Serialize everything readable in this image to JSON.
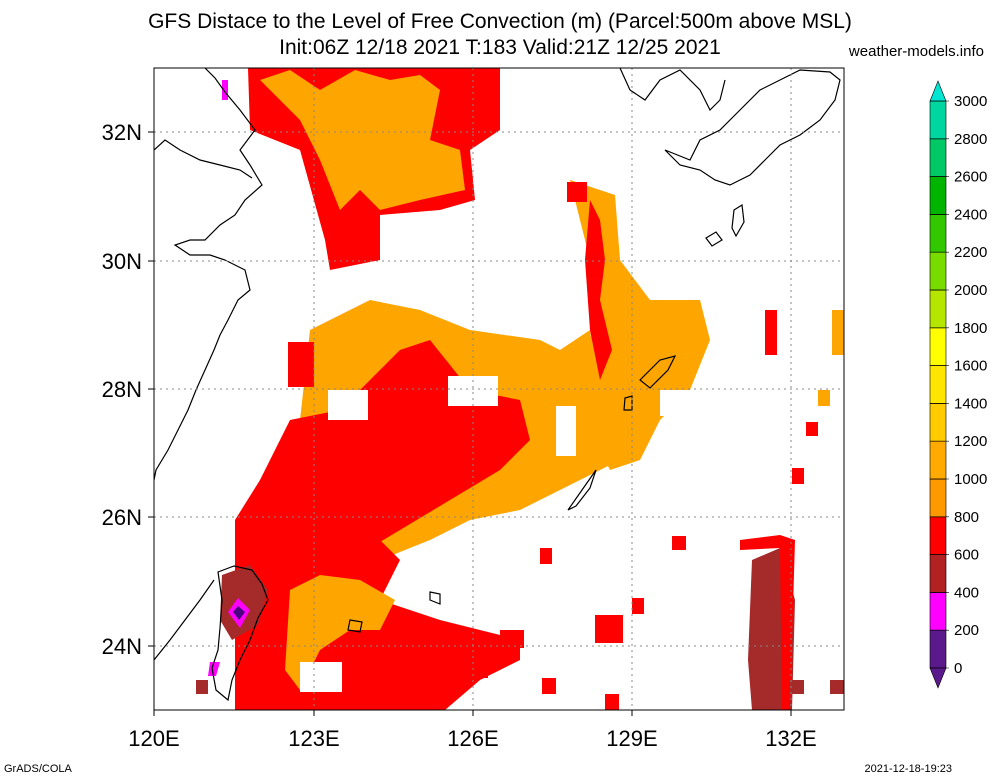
{
  "header": {
    "title_line1": "GFS Distace to the Level of Free Convection (m) (Parcel:500m above MSL)",
    "title_line2": "Init:06Z 12/18 2021 T:183 Valid:21Z 12/25 2021",
    "site": "weather-models.info"
  },
  "footer": {
    "left": "GrADS/COLA",
    "right": "2021-12-18-19:23"
  },
  "map": {
    "lon_labels": [
      "120E",
      "123E",
      "126E",
      "129E",
      "132E"
    ],
    "lat_labels": [
      "32N",
      "30N",
      "28N",
      "26N",
      "24N"
    ],
    "region": {
      "lon_min": 120,
      "lon_max": 133,
      "lat_min": 23,
      "lat_max": 33
    }
  },
  "colorbar": {
    "labels": [
      "0",
      "200",
      "400",
      "600",
      "800",
      "1000",
      "1200",
      "1400",
      "1600",
      "1800",
      "2000",
      "2200",
      "2400",
      "2600",
      "2800",
      "3000"
    ],
    "colors": [
      "#5a1a8c",
      "#ff00ff",
      "#b22222",
      "#ff0000",
      "#ff9900",
      "#ffaa00",
      "#ffcc00",
      "#ffe600",
      "#ffff00",
      "#b4e600",
      "#78dc00",
      "#32c800",
      "#00b400",
      "#00c864",
      "#00d7a0",
      "#00e6d2"
    ]
  }
}
